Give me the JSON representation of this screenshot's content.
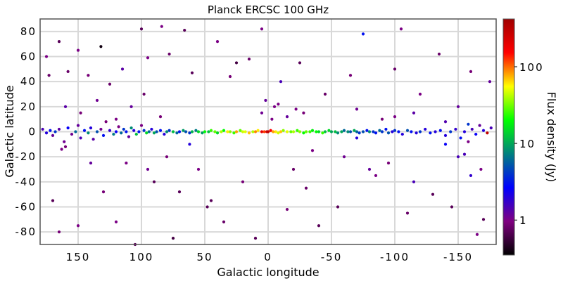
{
  "chart_data": {
    "type": "scatter",
    "title": "Planck ERCSC 100 GHz",
    "xlabel": "Galactic longitude",
    "ylabel": "Galactic latitude",
    "xlim": [
      180,
      -180
    ],
    "ylim": [
      -90,
      90
    ],
    "xticks": [
      150,
      100,
      50,
      0,
      -50,
      -100,
      -150
    ],
    "yticks": [
      80,
      60,
      40,
      20,
      0,
      -20,
      -40,
      -60,
      -80
    ],
    "grid": true,
    "colorbar": {
      "label": "Flux density (Jy)",
      "scale": "log",
      "range": [
        0.35,
        420
      ],
      "ticks": [
        1,
        10,
        100
      ],
      "colormap": [
        "#000000",
        "#800080",
        "#0000ff",
        "#008080",
        "#00ff00",
        "#ffff00",
        "#ff0000",
        "#a00000"
      ]
    },
    "points": [
      [
        178,
        2,
        1.5
      ],
      [
        175,
        -1,
        2
      ],
      [
        172,
        1,
        3
      ],
      [
        170,
        -3,
        1.2
      ],
      [
        168,
        0,
        4
      ],
      [
        165,
        2,
        1.3
      ],
      [
        163,
        -14,
        1
      ],
      [
        161,
        -8,
        1.1
      ],
      [
        160,
        -12,
        0.9
      ],
      [
        158,
        3,
        2.5
      ],
      [
        155,
        -2,
        1.1
      ],
      [
        152,
        0,
        6
      ],
      [
        150,
        5,
        1.2
      ],
      [
        148,
        -5,
        1.5
      ],
      [
        145,
        1,
        3
      ],
      [
        142,
        -1,
        8
      ],
      [
        140,
        3,
        2
      ],
      [
        138,
        -6,
        1.3
      ],
      [
        135,
        0,
        5
      ],
      [
        132,
        2,
        1.1
      ],
      [
        130,
        -3,
        3
      ],
      [
        128,
        8,
        0.9
      ],
      [
        125,
        1,
        1.8
      ],
      [
        122,
        -2,
        7
      ],
      [
        120,
        0,
        2.5
      ],
      [
        118,
        4,
        1
      ],
      [
        116,
        -1,
        6
      ],
      [
        114,
        2,
        4
      ],
      [
        112,
        0,
        3
      ],
      [
        110,
        -4,
        1.2
      ],
      [
        108,
        3,
        8
      ],
      [
        106,
        1,
        2
      ],
      [
        104,
        -2,
        12
      ],
      [
        102,
        0,
        3
      ],
      [
        100,
        5,
        1
      ],
      [
        98,
        1,
        4
      ],
      [
        96,
        -1,
        15
      ],
      [
        94,
        0,
        6
      ],
      [
        92,
        2,
        2
      ],
      [
        90,
        -1,
        10
      ],
      [
        88,
        0,
        5
      ],
      [
        85,
        1,
        3
      ],
      [
        82,
        -2,
        2
      ],
      [
        80,
        0,
        8
      ],
      [
        78,
        1,
        4
      ],
      [
        75,
        0,
        12
      ],
      [
        72,
        -1,
        6
      ],
      [
        70,
        0,
        3
      ],
      [
        67,
        1,
        9
      ],
      [
        65,
        0,
        5
      ],
      [
        62,
        -1,
        4
      ],
      [
        60,
        0,
        11
      ],
      [
        57,
        1,
        7
      ],
      [
        55,
        0,
        15
      ],
      [
        52,
        -1,
        9
      ],
      [
        50,
        0,
        20
      ],
      [
        47,
        0,
        12
      ],
      [
        45,
        1,
        25
      ],
      [
        42,
        0,
        30
      ],
      [
        40,
        -1,
        15
      ],
      [
        37,
        0,
        40
      ],
      [
        35,
        1,
        20
      ],
      [
        32,
        0,
        60
      ],
      [
        30,
        0,
        35
      ],
      [
        27,
        -1,
        25
      ],
      [
        25,
        0,
        80
      ],
      [
        22,
        1,
        30
      ],
      [
        20,
        0,
        45
      ],
      [
        18,
        0,
        50
      ],
      [
        15,
        -1,
        70
      ],
      [
        12,
        0,
        40
      ],
      [
        10,
        0,
        90
      ],
      [
        8,
        1,
        60
      ],
      [
        5,
        0,
        200
      ],
      [
        3,
        0,
        120
      ],
      [
        1,
        0,
        250
      ],
      [
        0,
        0,
        300
      ],
      [
        -2,
        1,
        150
      ],
      [
        -4,
        0,
        80
      ],
      [
        -6,
        0,
        60
      ],
      [
        -8,
        -1,
        45
      ],
      [
        -10,
        0,
        70
      ],
      [
        -12,
        1,
        35
      ],
      [
        -15,
        0,
        50
      ],
      [
        -18,
        0,
        30
      ],
      [
        -20,
        0,
        40
      ],
      [
        -23,
        1,
        25
      ],
      [
        -25,
        0,
        35
      ],
      [
        -28,
        -1,
        20
      ],
      [
        -30,
        0,
        30
      ],
      [
        -33,
        0,
        25
      ],
      [
        -35,
        1,
        18
      ],
      [
        -38,
        0,
        20
      ],
      [
        -40,
        0,
        15
      ],
      [
        -43,
        -1,
        25
      ],
      [
        -45,
        0,
        12
      ],
      [
        -48,
        1,
        15
      ],
      [
        -50,
        0,
        10
      ],
      [
        -53,
        0,
        12
      ],
      [
        -55,
        -1,
        8
      ],
      [
        -58,
        0,
        10
      ],
      [
        -60,
        1,
        6
      ],
      [
        -63,
        0,
        8
      ],
      [
        -65,
        0,
        5
      ],
      [
        -68,
        1,
        10
      ],
      [
        -70,
        0,
        6
      ],
      [
        -72,
        -1,
        4
      ],
      [
        -75,
        0,
        5
      ],
      [
        -78,
        1,
        3
      ],
      [
        -80,
        0,
        8
      ],
      [
        -83,
        0,
        4
      ],
      [
        -85,
        -1,
        3
      ],
      [
        -88,
        1,
        6
      ],
      [
        -90,
        0,
        4
      ],
      [
        -93,
        2,
        3
      ],
      [
        -95,
        -1,
        5
      ],
      [
        -98,
        0,
        2
      ],
      [
        -100,
        1,
        4
      ],
      [
        -103,
        0,
        3
      ],
      [
        -106,
        -2,
        2
      ],
      [
        -110,
        1,
        5
      ],
      [
        -113,
        0,
        3
      ],
      [
        -117,
        -1,
        2
      ],
      [
        -120,
        0,
        4
      ],
      [
        -124,
        2,
        2
      ],
      [
        -128,
        -1,
        3
      ],
      [
        -132,
        0,
        2
      ],
      [
        -136,
        1,
        3
      ],
      [
        -140,
        -3,
        2
      ],
      [
        -144,
        0,
        4
      ],
      [
        -148,
        2,
        1.8
      ],
      [
        -152,
        -5,
        3
      ],
      [
        -155,
        0,
        2
      ],
      [
        -158,
        6,
        4
      ],
      [
        -161,
        2,
        1.5
      ],
      [
        -164,
        -2,
        2.5
      ],
      [
        -167,
        5,
        1.2
      ],
      [
        -170,
        1,
        2
      ],
      [
        -173,
        -1,
        300
      ],
      [
        -176,
        3,
        1.5
      ],
      [
        175,
        60,
        1
      ],
      [
        173,
        45,
        0.8
      ],
      [
        165,
        72,
        0.7
      ],
      [
        158,
        48,
        0.8
      ],
      [
        150,
        65,
        1
      ],
      [
        142,
        45,
        0.9
      ],
      [
        132,
        68,
        0.4
      ],
      [
        125,
        38,
        0.8
      ],
      [
        115,
        50,
        1.3
      ],
      [
        112,
        -25,
        1
      ],
      [
        100,
        82,
        0.7
      ],
      [
        95,
        59,
        1
      ],
      [
        90,
        -40,
        0.7
      ],
      [
        84,
        84,
        1
      ],
      [
        78,
        62,
        0.8
      ],
      [
        70,
        -48,
        0.7
      ],
      [
        66,
        81,
        0.7
      ],
      [
        60,
        47,
        0.7
      ],
      [
        55,
        -30,
        1
      ],
      [
        45,
        -55,
        0.7
      ],
      [
        40,
        72,
        1
      ],
      [
        30,
        44,
        0.9
      ],
      [
        25,
        55,
        0.6
      ],
      [
        15,
        58,
        0.8
      ],
      [
        5,
        82,
        1
      ],
      [
        2,
        25,
        1.2
      ],
      [
        -5,
        20,
        1
      ],
      [
        -10,
        40,
        1.5
      ],
      [
        -20,
        -30,
        0.8
      ],
      [
        -25,
        55,
        0.7
      ],
      [
        -35,
        -15,
        1
      ],
      [
        -45,
        30,
        0.8
      ],
      [
        -55,
        -60,
        0.7
      ],
      [
        -65,
        45,
        0.9
      ],
      [
        -75,
        78,
        3
      ],
      [
        -80,
        -30,
        1.2
      ],
      [
        -85,
        -35,
        1
      ],
      [
        -90,
        10,
        0.9
      ],
      [
        -100,
        50,
        0.8
      ],
      [
        -105,
        82,
        1
      ],
      [
        -110,
        -65,
        0.8
      ],
      [
        -120,
        30,
        1
      ],
      [
        -130,
        -50,
        0.7
      ],
      [
        -135,
        62,
        0.8
      ],
      [
        -145,
        -60,
        0.7
      ],
      [
        -150,
        20,
        1.2
      ],
      [
        -155,
        -18,
        1.5
      ],
      [
        -160,
        48,
        0.9
      ],
      [
        -165,
        -82,
        1
      ],
      [
        -170,
        -70,
        0.7
      ],
      [
        -175,
        40,
        1.2
      ],
      [
        170,
        -55,
        0.7
      ],
      [
        165,
        -80,
        0.9
      ],
      [
        150,
        -75,
        1
      ],
      [
        140,
        -25,
        1.2
      ],
      [
        130,
        -48,
        0.9
      ],
      [
        120,
        -72,
        1
      ],
      [
        105,
        -90,
        0.7
      ],
      [
        95,
        -30,
        1.1
      ],
      [
        80,
        -20,
        0.9
      ],
      [
        75,
        -85,
        0.6
      ],
      [
        62,
        -10,
        2
      ],
      [
        48,
        -60,
        0.7
      ],
      [
        35,
        -72,
        0.8
      ],
      [
        20,
        -40,
        0.9
      ],
      [
        10,
        -85,
        0.7
      ],
      [
        -15,
        -62,
        0.9
      ],
      [
        -30,
        -45,
        0.8
      ],
      [
        -40,
        -75,
        0.7
      ],
      [
        -60,
        -20,
        1.1
      ],
      [
        -70,
        -5,
        2
      ],
      [
        -95,
        -25,
        0.9
      ],
      [
        -115,
        -40,
        1.5
      ],
      [
        -140,
        -10,
        2.5
      ],
      [
        -160,
        -35,
        1.8
      ],
      [
        -168,
        -30,
        1
      ],
      [
        160,
        20,
        1.3
      ],
      [
        148,
        15,
        0.9
      ],
      [
        135,
        25,
        1.1
      ],
      [
        120,
        10,
        1
      ],
      [
        108,
        20,
        1.2
      ],
      [
        98,
        30,
        0.8
      ],
      [
        85,
        12,
        0.9
      ],
      [
        5,
        15,
        1.1
      ],
      [
        -3,
        10,
        1
      ],
      [
        -8,
        22,
        1
      ],
      [
        -15,
        12,
        1.2
      ],
      [
        -22,
        18,
        1
      ],
      [
        -28,
        15,
        0.9
      ],
      [
        -70,
        18,
        1.1
      ],
      [
        -100,
        12,
        1
      ],
      [
        -115,
        15,
        1.3
      ],
      [
        -140,
        8,
        1.4
      ],
      [
        -150,
        -20,
        1.5
      ],
      [
        -158,
        -8,
        1
      ]
    ]
  }
}
